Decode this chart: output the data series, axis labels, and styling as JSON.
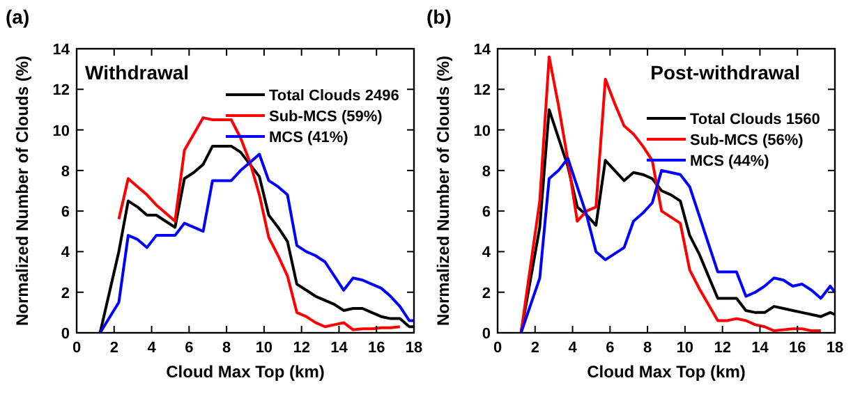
{
  "chart_data": [
    {
      "type": "line",
      "title": "(a)",
      "xlabel": "Cloud Max Top (km)",
      "ylabel": "Normalized Number of Clouds  (%)",
      "annotations": [
        "Withdrawal"
      ],
      "xlim": [
        0,
        18
      ],
      "xticks": [
        0,
        2,
        4,
        6,
        8,
        10,
        12,
        14,
        16,
        18
      ],
      "ylim": [
        0,
        14
      ],
      "yticks": [
        0,
        2,
        4,
        6,
        8,
        10,
        12,
        14
      ],
      "grid": false,
      "legend": "top right",
      "series": [
        {
          "name": "Total Clouds 2496",
          "color": "#000000",
          "x": [
            1.25,
            2.25,
            2.75,
            3.25,
            3.75,
            4.25,
            4.75,
            5.25,
            5.75,
            6.25,
            6.75,
            7.25,
            7.75,
            8.25,
            8.75,
            9.25,
            9.75,
            10.25,
            10.75,
            11.25,
            11.75,
            12.25,
            12.75,
            13.25,
            13.75,
            14.25,
            14.75,
            15.25,
            15.75,
            16.25,
            16.75,
            17.25,
            17.75,
            18
          ],
          "values": [
            0,
            4,
            6.5,
            6.2,
            5.8,
            5.8,
            5.5,
            5.2,
            7.6,
            7.9,
            8.3,
            9.2,
            9.2,
            9.2,
            8.9,
            8.3,
            7.7,
            5.8,
            5.2,
            4.5,
            2.4,
            2.1,
            1.8,
            1.6,
            1.4,
            1.1,
            1.2,
            1.2,
            1,
            0.8,
            0.7,
            0.7,
            0.3,
            0.3
          ]
        },
        {
          "name": "Sub-MCS (59%)",
          "color": "#ff0000",
          "x": [
            2.25,
            2.75,
            3.25,
            3.75,
            4.25,
            4.75,
            5.25,
            5.75,
            6.25,
            6.75,
            7.25,
            7.75,
            8.25,
            8.75,
            9.25,
            9.75,
            10.25,
            10.75,
            11.25,
            11.75,
            12.25,
            12.75,
            13.25,
            13.75,
            14.25,
            14.75,
            15.25,
            15.75,
            16.25,
            16.75,
            17.25
          ],
          "values": [
            5.6,
            7.6,
            7.2,
            6.8,
            6.3,
            5.9,
            5.5,
            9,
            9.8,
            10.6,
            10.5,
            10.5,
            10.5,
            9.6,
            8.4,
            6.8,
            4.7,
            3.8,
            2.8,
            1,
            0.8,
            0.5,
            0.3,
            0.4,
            0.5,
            0.15,
            0.2,
            0.2,
            0.25,
            0.25,
            0.3
          ]
        },
        {
          "name": "MCS (41%)",
          "color": "#0000ff",
          "x": [
            1.25,
            2.25,
            2.75,
            3.25,
            3.75,
            4.25,
            4.75,
            5.25,
            5.75,
            6.25,
            6.75,
            7.25,
            7.75,
            8.25,
            8.75,
            9.25,
            9.75,
            10.25,
            10.75,
            11.25,
            11.75,
            12.25,
            12.75,
            13.25,
            13.75,
            14.25,
            14.75,
            15.25,
            15.75,
            16.25,
            16.75,
            17.25,
            17.75,
            18
          ],
          "values": [
            0,
            1.5,
            4.8,
            4.6,
            4.2,
            4.8,
            4.8,
            4.8,
            5.4,
            5.2,
            5,
            7.5,
            7.5,
            7.5,
            8,
            8.4,
            8.8,
            7.5,
            7.2,
            6.8,
            4.3,
            4,
            3.8,
            3.5,
            2.8,
            2.1,
            2.7,
            2.6,
            2.4,
            2.2,
            1.8,
            1.3,
            0.6,
            0.6
          ]
        }
      ]
    },
    {
      "type": "line",
      "title": "(b)",
      "xlabel": "Cloud Max Top (km)",
      "ylabel": "Normalized Number of Clouds  (%)",
      "annotations": [
        "Post-withdrawal"
      ],
      "xlim": [
        0,
        18
      ],
      "xticks": [
        0,
        2,
        4,
        6,
        8,
        10,
        12,
        14,
        16,
        18
      ],
      "ylim": [
        0,
        14
      ],
      "yticks": [
        0,
        2,
        4,
        6,
        8,
        10,
        12,
        14
      ],
      "grid": false,
      "legend": "top right",
      "series": [
        {
          "name": "Total Clouds 1560",
          "color": "#000000",
          "x": [
            1.25,
            2.25,
            2.75,
            3.25,
            3.75,
            4.25,
            4.75,
            5.25,
            5.75,
            6.25,
            6.75,
            7.25,
            7.75,
            8.25,
            8.75,
            9.25,
            9.75,
            10.25,
            10.75,
            11.25,
            11.75,
            12.25,
            12.75,
            13.25,
            13.75,
            14.25,
            14.75,
            15.25,
            15.75,
            16.25,
            16.75,
            17.25,
            17.75,
            18
          ],
          "values": [
            0,
            5.2,
            11,
            9.6,
            8.2,
            6.2,
            5.8,
            5.3,
            8.5,
            8,
            7.5,
            7.9,
            7.8,
            7.6,
            7,
            6.8,
            6.5,
            4.8,
            3.9,
            2.8,
            1.7,
            1.7,
            1.7,
            1.1,
            1,
            1,
            1.3,
            1.2,
            1.1,
            1,
            0.9,
            0.8,
            1,
            0.9
          ]
        },
        {
          "name": "Sub-MCS (56%)",
          "color": "#ff0000",
          "x": [
            1.25,
            2.25,
            2.75,
            3.25,
            3.75,
            4.25,
            4.75,
            5.25,
            5.75,
            6.25,
            6.75,
            7.25,
            7.75,
            8.25,
            8.75,
            9.25,
            9.75,
            10.25,
            10.75,
            11.25,
            11.75,
            12.25,
            12.75,
            13.25,
            13.75,
            14.25,
            14.75,
            15.25,
            15.75,
            16.25,
            16.75,
            17.25
          ],
          "values": [
            0,
            6.5,
            13.6,
            11.2,
            8.5,
            5.5,
            6,
            6.2,
            12.5,
            11.3,
            10.2,
            9.8,
            9.2,
            8.5,
            6,
            5.7,
            5.4,
            3.1,
            2.2,
            1.4,
            0.6,
            0.6,
            0.7,
            0.6,
            0.4,
            0.3,
            0.1,
            0.15,
            0.2,
            0.2,
            0.1,
            0.1
          ]
        },
        {
          "name": "MCS (44%)",
          "color": "#0000ff",
          "x": [
            1.25,
            2.25,
            2.75,
            3.25,
            3.75,
            4.25,
            4.75,
            5.25,
            5.75,
            6.25,
            6.75,
            7.25,
            7.75,
            8.25,
            8.75,
            9.25,
            9.75,
            10.25,
            10.75,
            11.25,
            11.75,
            12.25,
            12.75,
            13.25,
            13.75,
            14.25,
            14.75,
            15.25,
            15.75,
            16.25,
            16.75,
            17.25,
            17.75,
            18
          ],
          "values": [
            0,
            2.7,
            7.6,
            8,
            8.6,
            7.2,
            5.8,
            4,
            3.6,
            3.9,
            4.2,
            5.5,
            5.9,
            6.4,
            8,
            7.9,
            7.8,
            7.2,
            5.8,
            4.4,
            3,
            3,
            3,
            1.8,
            2,
            2.3,
            2.7,
            2.6,
            2.3,
            2.4,
            2.1,
            1.7,
            2.3,
            2
          ]
        }
      ]
    }
  ]
}
